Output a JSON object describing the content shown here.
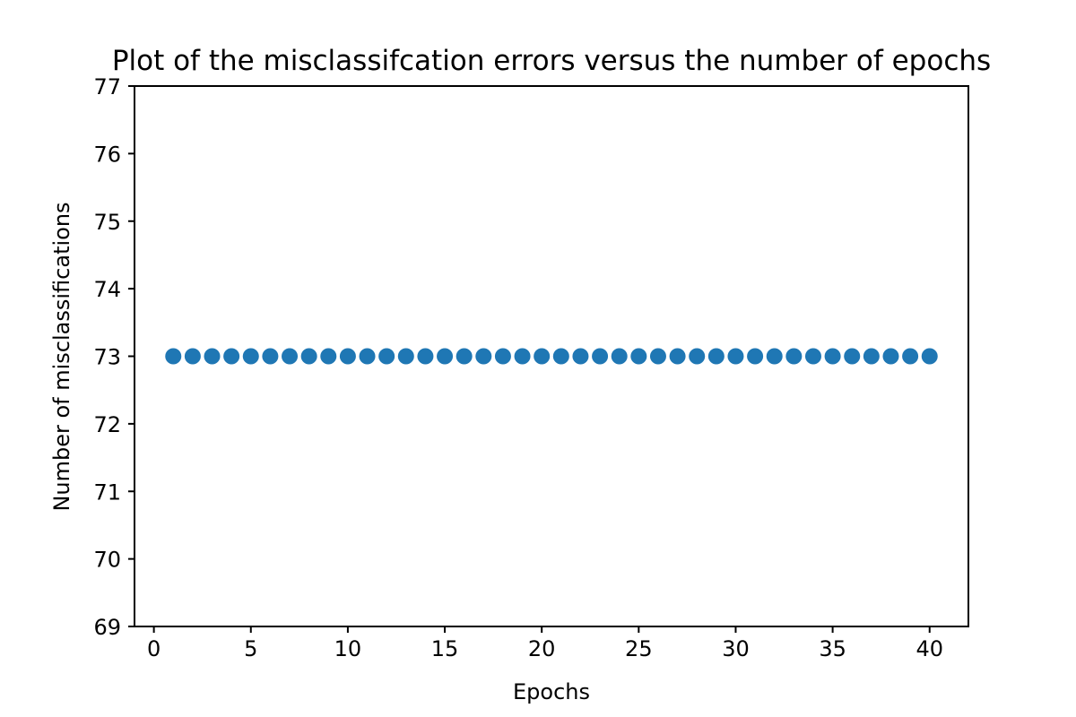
{
  "chart_data": {
    "type": "scatter",
    "title": "Plot of the misclassifcation errors versus the number of epochs",
    "xlabel": "Epochs",
    "ylabel": "Number of misclassifications",
    "xlim": [
      -1,
      42
    ],
    "ylim": [
      69,
      77
    ],
    "xticks": [
      0,
      5,
      10,
      15,
      20,
      25,
      30,
      35,
      40
    ],
    "yticks": [
      69,
      70,
      71,
      72,
      73,
      74,
      75,
      76,
      77
    ],
    "grid": false,
    "marker_color": "#1f77b4",
    "x": [
      1,
      2,
      3,
      4,
      5,
      6,
      7,
      8,
      9,
      10,
      11,
      12,
      13,
      14,
      15,
      16,
      17,
      18,
      19,
      20,
      21,
      22,
      23,
      24,
      25,
      26,
      27,
      28,
      29,
      30,
      31,
      32,
      33,
      34,
      35,
      36,
      37,
      38,
      39,
      40
    ],
    "y": [
      73,
      73,
      73,
      73,
      73,
      73,
      73,
      73,
      73,
      73,
      73,
      73,
      73,
      73,
      73,
      73,
      73,
      73,
      73,
      73,
      73,
      73,
      73,
      73,
      73,
      73,
      73,
      73,
      73,
      73,
      73,
      73,
      73,
      73,
      73,
      73,
      73,
      73,
      73,
      73
    ]
  }
}
